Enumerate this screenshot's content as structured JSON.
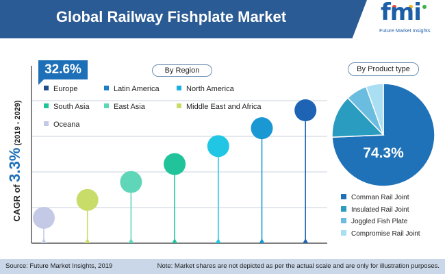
{
  "header": {
    "title": "Global Railway Fishplate Market",
    "logo_mark": "fmi",
    "logo_subtitle": "Future Market Insights"
  },
  "cagr": {
    "prefix": "CAGR of ",
    "value": "3.3%",
    "period": " (2019 - 2029)"
  },
  "badge": "32.6%",
  "region_pill": "By Region",
  "product_pill": "By Product type",
  "footer": {
    "source": "Source: Future Market Insights, 2019",
    "note": "Note: Market shares are not depicted as per the actual scale and are only for illustration purposes."
  },
  "chart_data": [
    {
      "type": "lollipop",
      "title": "By Region",
      "categories": [
        "Oceana",
        "Middle East and Africa",
        "East Asia",
        "South Asia",
        "North America",
        "Latin America",
        "Europe"
      ],
      "values": [
        1,
        2,
        3,
        4,
        5,
        6,
        7
      ],
      "colors": [
        "#c4c9e6",
        "#c8dc6a",
        "#5fd6b8",
        "#21c49a",
        "#21c6e4",
        "#1a98d4",
        "#1e63b4"
      ],
      "legend": [
        {
          "label": "Europe",
          "color": "#1e4d8a"
        },
        {
          "label": "Latin America",
          "color": "#1a7fc8"
        },
        {
          "label": "North America",
          "color": "#1ab0e2"
        },
        {
          "label": "South Asia",
          "color": "#21c49a"
        },
        {
          "label": "East Asia",
          "color": "#5fd6b8"
        },
        {
          "label": "Middle East and Africa",
          "color": "#c8dc6a"
        },
        {
          "label": "Oceana",
          "color": "#c4c9e6"
        }
      ],
      "highlight_label": "32.6%",
      "note": "illustrative ranking only; not to scale"
    },
    {
      "type": "pie",
      "title": "By Product type",
      "slices": [
        {
          "label": "Comman Rail Joint",
          "value": 74.3,
          "color": "#1f72b8"
        },
        {
          "label": "Insulated Rail Joint",
          "value": 13.5,
          "color": "#2a9cc0"
        },
        {
          "label": "Joggled Fish Plate",
          "value": 6.7,
          "color": "#6bbde0"
        },
        {
          "label": "Compromise Rail Joint",
          "value": 5.5,
          "color": "#a9def3"
        }
      ],
      "center_label": "74.3%"
    }
  ]
}
